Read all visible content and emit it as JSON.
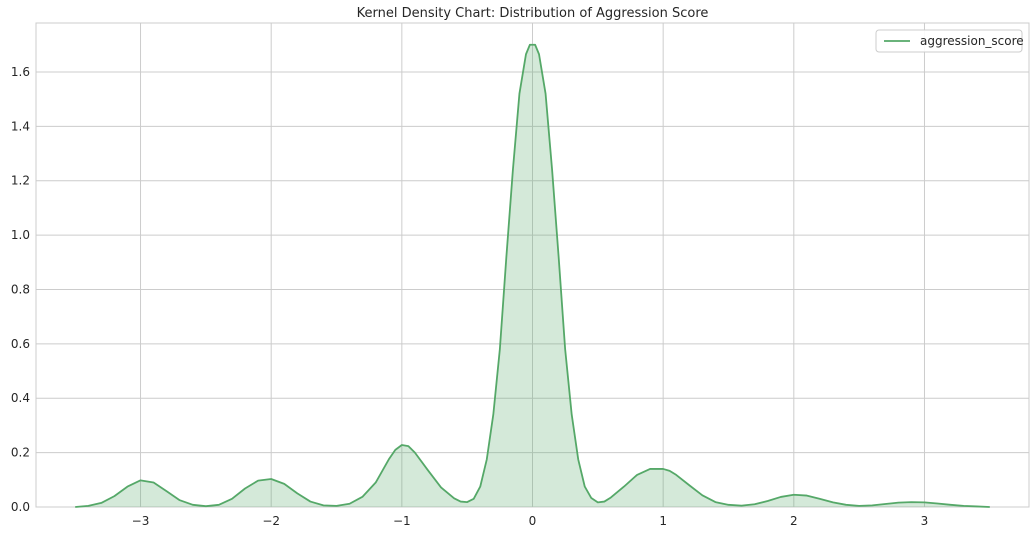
{
  "chart_data": {
    "type": "area",
    "title": "Kernel Density Chart: Distribution of Aggression Score",
    "xlabel": "",
    "ylabel": "",
    "xlim": [
      -3.8,
      3.8
    ],
    "ylim": [
      0,
      1.78
    ],
    "xticks": [
      -3,
      -2,
      -1,
      0,
      1,
      2,
      3
    ],
    "xtick_labels": [
      "−3",
      "−2",
      "−1",
      "0",
      "1",
      "2",
      "3"
    ],
    "yticks": [
      0.0,
      0.2,
      0.4,
      0.6,
      0.8,
      1.0,
      1.2,
      1.4,
      1.6
    ],
    "ytick_labels": [
      "0.0",
      "0.2",
      "0.4",
      "0.6",
      "0.8",
      "1.0",
      "1.2",
      "1.4",
      "1.6"
    ],
    "grid": true,
    "legend_position": "top-right",
    "series": [
      {
        "name": "aggression_score",
        "color": "#55a868",
        "fill_color": "#55a868",
        "fill_opacity": 0.25,
        "x": [
          -3.5,
          -3.4,
          -3.3,
          -3.2,
          -3.1,
          -3.0,
          -2.9,
          -2.8,
          -2.7,
          -2.6,
          -2.5,
          -2.4,
          -2.3,
          -2.2,
          -2.1,
          -2.0,
          -1.9,
          -1.8,
          -1.7,
          -1.6,
          -1.5,
          -1.4,
          -1.3,
          -1.2,
          -1.1,
          -1.05,
          -1.0,
          -0.95,
          -0.9,
          -0.8,
          -0.7,
          -0.6,
          -0.55,
          -0.5,
          -0.45,
          -0.4,
          -0.35,
          -0.3,
          -0.25,
          -0.2,
          -0.15,
          -0.1,
          -0.05,
          -0.02,
          0.0,
          0.02,
          0.05,
          0.1,
          0.15,
          0.2,
          0.25,
          0.3,
          0.35,
          0.4,
          0.45,
          0.5,
          0.55,
          0.6,
          0.7,
          0.8,
          0.9,
          1.0,
          1.05,
          1.1,
          1.2,
          1.3,
          1.4,
          1.5,
          1.6,
          1.7,
          1.8,
          1.9,
          2.0,
          2.1,
          2.2,
          2.3,
          2.4,
          2.5,
          2.6,
          2.7,
          2.8,
          2.9,
          3.0,
          3.1,
          3.2,
          3.3,
          3.4,
          3.5
        ],
        "y": [
          0.0,
          0.004,
          0.015,
          0.04,
          0.075,
          0.098,
          0.09,
          0.058,
          0.025,
          0.008,
          0.003,
          0.008,
          0.03,
          0.068,
          0.097,
          0.103,
          0.085,
          0.05,
          0.02,
          0.006,
          0.004,
          0.012,
          0.038,
          0.09,
          0.175,
          0.21,
          0.228,
          0.224,
          0.2,
          0.135,
          0.072,
          0.032,
          0.02,
          0.018,
          0.03,
          0.075,
          0.175,
          0.34,
          0.58,
          0.92,
          1.24,
          1.52,
          1.665,
          1.7,
          1.7,
          1.7,
          1.665,
          1.52,
          1.24,
          0.92,
          0.58,
          0.34,
          0.175,
          0.075,
          0.033,
          0.017,
          0.02,
          0.035,
          0.075,
          0.118,
          0.14,
          0.14,
          0.133,
          0.118,
          0.08,
          0.043,
          0.018,
          0.008,
          0.005,
          0.01,
          0.022,
          0.037,
          0.045,
          0.042,
          0.03,
          0.017,
          0.008,
          0.004,
          0.006,
          0.011,
          0.016,
          0.018,
          0.017,
          0.013,
          0.008,
          0.004,
          0.002,
          0.0
        ]
      }
    ]
  }
}
